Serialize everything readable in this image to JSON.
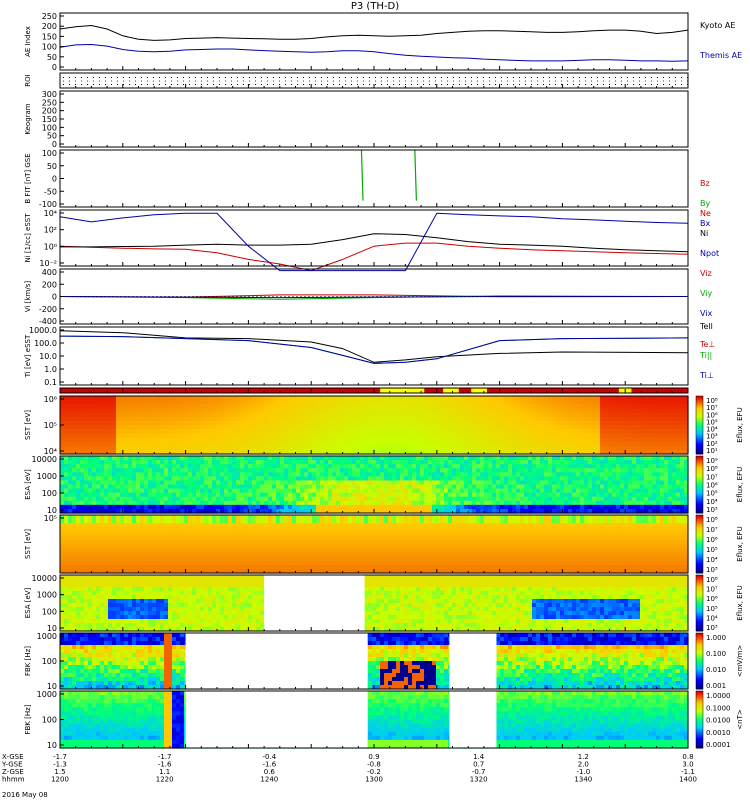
{
  "title": "P3 (TH-D)",
  "date_label": "2016 May 08",
  "footer_rows": {
    "labels": [
      "X-GSE",
      "Y-GSE",
      "Z-GSE",
      "hhmm"
    ],
    "columns": [
      [
        "-1.7",
        "-1.3",
        "1.5",
        "1200"
      ],
      [
        "-1.7",
        "-1.6",
        "1.1",
        "1220"
      ],
      [
        "-0.4",
        "-1.6",
        "0.6",
        "1240"
      ],
      [
        "0.9",
        "-0.8",
        "-0.2",
        "1300"
      ],
      [
        "1.4",
        "0.7",
        "-0.7",
        "1320"
      ],
      [
        "1.2",
        "2.0",
        "-1.0",
        "1340"
      ],
      [
        "0.8",
        "3.0",
        "-1.1",
        "1400"
      ]
    ]
  },
  "chart_data": [
    {
      "type": "line",
      "panel": "ae",
      "ylabel": "AE Index",
      "yticks": [
        "250",
        "200",
        "150",
        "100",
        "50",
        "0"
      ],
      "ylim": [
        0,
        250
      ],
      "series": [
        {
          "name": "Kyoto AE",
          "color": "#000000",
          "x": [
            1200,
            1205,
            1210,
            1215,
            1220,
            1225,
            1230,
            1235,
            1240,
            1245,
            1250,
            1255,
            1260,
            1265,
            1270,
            1275,
            1280,
            1285,
            1290,
            1295,
            1300,
            1305,
            1310,
            1315,
            1320,
            1325,
            1330,
            1335,
            1340,
            1345,
            1350,
            1355,
            1360,
            1365,
            1370,
            1375,
            1380,
            1385,
            1390,
            1395,
            1400
          ],
          "values": [
            180,
            190,
            195,
            180,
            150,
            135,
            130,
            132,
            138,
            140,
            142,
            140,
            138,
            137,
            135,
            135,
            138,
            145,
            150,
            152,
            150,
            148,
            150,
            152,
            160,
            165,
            170,
            172,
            172,
            170,
            168,
            165,
            165,
            168,
            172,
            175,
            175,
            170,
            160,
            165,
            175
          ]
        },
        {
          "name": "Themis AE",
          "color": "#0000aa",
          "x": [
            1200,
            1205,
            1210,
            1215,
            1220,
            1225,
            1230,
            1235,
            1240,
            1245,
            1250,
            1255,
            1260,
            1265,
            1270,
            1275,
            1280,
            1285,
            1290,
            1295,
            1300,
            1305,
            1310,
            1315,
            1320,
            1325,
            1330,
            1335,
            1340,
            1345,
            1350,
            1355,
            1360,
            1365,
            1370,
            1375,
            1380,
            1385,
            1390,
            1395,
            1400
          ],
          "values": [
            100,
            110,
            112,
            105,
            90,
            82,
            80,
            82,
            88,
            90,
            92,
            92,
            88,
            85,
            82,
            80,
            78,
            80,
            84,
            84,
            80,
            72,
            65,
            60,
            57,
            54,
            52,
            48,
            45,
            42,
            40,
            40,
            40,
            42,
            45,
            45,
            43,
            40,
            40,
            38,
            40
          ]
        }
      ]
    },
    {
      "type": "heatmap",
      "panel": "roi",
      "ylabel": "ROI"
    },
    {
      "type": "line",
      "panel": "keogram",
      "ylabel": "Keogram",
      "yticks": [
        "300",
        "250",
        "200",
        "150",
        "100",
        "50",
        "0"
      ],
      "ylim": [
        0,
        300
      ]
    },
    {
      "type": "line",
      "panel": "bfit",
      "ylabel": "B FIT [nT] GSE",
      "yticks": [
        "100",
        "50",
        "0",
        "-50",
        "-100"
      ],
      "ylim": [
        -125,
        100
      ],
      "series": [
        {
          "name": "Bz",
          "color": "#cc0000",
          "x": [],
          "values": []
        },
        {
          "name": "By",
          "color": "#00aa00",
          "x": [
            1296,
            1296.5,
            1313,
            1313.5
          ],
          "values": [
            100,
            -100,
            100,
            -100
          ]
        },
        {
          "name": "Bx",
          "color": "#0000aa",
          "x": [],
          "values": []
        }
      ]
    },
    {
      "type": "line",
      "panel": "density",
      "ylabel": "Ni [1/cc] eSST",
      "yticks": [
        "10⁴",
        "10²",
        "10⁰",
        "10⁻²"
      ],
      "log_scale": true,
      "series": [
        {
          "name": "Ne",
          "color": "#cc0000",
          "x": [
            1200,
            1210,
            1220,
            1230,
            1240,
            1250,
            1260,
            1270,
            1280,
            1290,
            1300,
            1310,
            1320,
            1330,
            1340,
            1350,
            1360,
            1370,
            1380,
            1390,
            1400
          ],
          "values": [
            1.0,
            0.7,
            0.5,
            0.4,
            0.35,
            0.1,
            0.01,
            0.002,
            0.0002,
            0.01,
            1.0,
            3.0,
            3.0,
            1.0,
            0.5,
            0.3,
            0.2,
            0.15,
            0.1,
            0.08,
            0.06
          ]
        },
        {
          "name": "Ni",
          "color": "#000000",
          "x": [
            1200,
            1210,
            1220,
            1230,
            1240,
            1250,
            1260,
            1270,
            1280,
            1290,
            1300,
            1310,
            1320,
            1330,
            1340,
            1350,
            1360,
            1370,
            1380,
            1390,
            1400
          ],
          "values": [
            0.8,
            0.8,
            0.9,
            1.0,
            1.5,
            2.0,
            1.5,
            1.5,
            2.0,
            10,
            80,
            60,
            20,
            5,
            2,
            1.5,
            1.0,
            0.5,
            0.3,
            0.2,
            0.15
          ]
        },
        {
          "name": "Npot",
          "color": "#0000aa",
          "x": [
            1200,
            1210,
            1220,
            1230,
            1240,
            1250,
            1260,
            1270,
            1280,
            1290,
            1300,
            1310,
            1320,
            1330,
            1340,
            1350,
            1360,
            1370,
            1380,
            1390,
            1400
          ],
          "values": [
            30000,
            5000,
            20000,
            60000,
            100000,
            100000,
            1,
            0.0002,
            0.0002,
            0.0002,
            0.0002,
            0.0002,
            100000,
            60000,
            40000,
            30000,
            15000,
            10000,
            6000,
            4000,
            3000
          ]
        }
      ]
    },
    {
      "type": "line",
      "panel": "velocity",
      "ylabel": "Vi [km/s]",
      "yticks": [
        "400",
        "200",
        "0",
        "-200",
        "-400"
      ],
      "ylim": [
        -500,
        500
      ],
      "series": [
        {
          "name": "Viz",
          "color": "#cc0000",
          "x": [
            1200,
            1240,
            1270,
            1300,
            1340,
            1400
          ],
          "values": [
            0,
            -10,
            30,
            30,
            -5,
            0
          ]
        },
        {
          "name": "Viy",
          "color": "#00aa00",
          "x": [
            1200,
            1240,
            1270,
            1300,
            1340,
            1400
          ],
          "values": [
            0,
            -20,
            -50,
            -20,
            10,
            0
          ]
        },
        {
          "name": "Vix",
          "color": "#0000aa",
          "x": [
            1200,
            1240,
            1270,
            1300,
            1340,
            1400
          ],
          "values": [
            0,
            -10,
            -20,
            -10,
            0,
            0
          ]
        }
      ]
    },
    {
      "type": "line",
      "panel": "temperature",
      "ylabel": "Ti [eV] eSST",
      "yticks": [
        "1000.0",
        "100.0",
        "10.0",
        "1.0",
        "0.1"
      ],
      "log_scale": true,
      "series": [
        {
          "name": "Tell",
          "color": "#000000",
          "x": [
            1200,
            1220,
            1240,
            1260,
            1280,
            1290,
            1300,
            1310,
            1320,
            1340,
            1360,
            1400
          ],
          "values": [
            3000,
            2000,
            700,
            600,
            300,
            80,
            5,
            8,
            15,
            30,
            40,
            35
          ]
        },
        {
          "name": "Te⊥",
          "color": "#cc0000",
          "x": [],
          "values": []
        },
        {
          "name": "Ti||",
          "color": "#00aa00",
          "x": [
            1200,
            1220,
            1240,
            1260,
            1280,
            1290,
            1300,
            1310,
            1320,
            1340,
            1360,
            1400
          ],
          "values": [
            1000,
            900,
            600,
            400,
            100,
            20,
            4,
            5,
            10,
            400,
            600,
            700
          ]
        },
        {
          "name": "Ti⊥",
          "color": "#0000aa",
          "x": [
            1200,
            1220,
            1240,
            1260,
            1280,
            1290,
            1300,
            1310,
            1320,
            1340,
            1360,
            1400
          ],
          "values": [
            1000,
            900,
            600,
            400,
            100,
            20,
            4,
            5,
            10,
            400,
            600,
            700
          ]
        }
      ]
    },
    {
      "type": "heatmap",
      "panel": "mode_bar"
    },
    {
      "type": "heatmap",
      "panel": "sst_i",
      "ylabel": "SST [eV]",
      "yticks": [
        "10⁶",
        "10⁵",
        "10⁴"
      ]
    },
    {
      "type": "heatmap",
      "panel": "esa_i",
      "ylabel": "ESA [eV]",
      "yticks": [
        "10000",
        "1000",
        "100",
        "10"
      ]
    },
    {
      "type": "heatmap",
      "panel": "sst_e",
      "ylabel": "SST [eV]",
      "yticks": [
        "10⁵"
      ]
    },
    {
      "type": "heatmap",
      "panel": "esa_e",
      "ylabel": "ESA [eV]",
      "yticks": [
        "10000",
        "1000",
        "100",
        "10"
      ]
    },
    {
      "type": "heatmap",
      "panel": "fbk_e",
      "ylabel": "FBK [Hz]",
      "yticks": [
        "1000",
        "100",
        "10"
      ]
    },
    {
      "type": "heatmap",
      "panel": "fbk_b",
      "ylabel": "FBK [Hz]",
      "yticks": [
        "1000",
        "100",
        "10"
      ]
    }
  ],
  "colorbars": [
    {
      "id": "cb1",
      "title": "Eflux, EFU",
      "ticks": [
        "10⁸",
        "10⁷",
        "10⁶",
        "10⁵",
        "10⁴",
        "10³",
        "10²",
        "10¹"
      ]
    },
    {
      "id": "cb2",
      "title": "Eflux, EFU",
      "ticks": [
        "10⁹",
        "10⁸",
        "10⁷",
        "10⁶",
        "10⁵",
        "10⁴",
        "10³"
      ]
    },
    {
      "id": "cb3",
      "title": "Eflux, EFU",
      "ticks": [
        "10⁸",
        "10⁷",
        "10⁶",
        "10⁵",
        "10⁴",
        "10³"
      ]
    },
    {
      "id": "cb4",
      "title": "Eflux, EFU",
      "ticks": [
        "10⁸",
        "10⁷",
        "10⁶",
        "10⁵",
        "10⁴",
        "10³"
      ]
    },
    {
      "id": "cb5",
      "title": "<mV/m>",
      "ticks": [
        "1.000",
        "0.100",
        "0.010",
        "0.001"
      ]
    },
    {
      "id": "cb6",
      "title": "<nT>",
      "ticks": [
        "1.0000",
        "0.1000",
        "0.0100",
        "0.0010",
        "0.0001"
      ]
    }
  ],
  "colors": {
    "red": "#cc0000",
    "green": "#00aa00",
    "blue": "#0000aa",
    "yellow": "#ffff00",
    "background": "#ffffff"
  }
}
